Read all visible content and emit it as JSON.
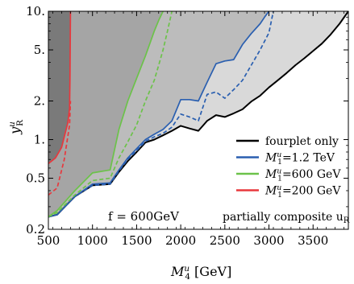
{
  "chart_data": {
    "type": "area",
    "xlabel_base": "M",
    "xlabel_sub": "4",
    "xlabel_sup": "u",
    "xlabel_unit": "[GeV]",
    "ylabel_base": "y",
    "ylabel_sub": "R",
    "ylabel_sup": "u",
    "x_axis": {
      "range": [
        500,
        3900
      ],
      "ticks": [
        "500",
        "1000",
        "1500",
        "2000",
        "2500",
        "3000",
        "3500"
      ],
      "tick_values": [
        500,
        1000,
        1500,
        2000,
        2500,
        3000,
        3500
      ]
    },
    "y_axis": {
      "scale": "log",
      "range": [
        0.2,
        10
      ],
      "ticks": [
        "0.2",
        "0.5",
        "1.",
        "2.",
        "5.",
        "10."
      ],
      "tick_values": [
        0.2,
        0.5,
        1,
        2,
        5,
        10
      ]
    },
    "annotations": {
      "f_value": "f = 600GeV",
      "scenario": "partially composite u",
      "scenario_sub": "R"
    },
    "legend": {
      "placement": "right",
      "entries": [
        {
          "label": "fourplet only",
          "color": "#000000"
        },
        {
          "label_base": "M",
          "label_sub": "1",
          "label_sup": "u",
          "label_value": "=1.2 TeV",
          "color": "#2a5fb0"
        },
        {
          "label_base": "M",
          "label_sub": "1",
          "label_sup": "u",
          "label_value": "=600 GeV",
          "color": "#6cc24a"
        },
        {
          "label_base": "M",
          "label_sub": "1",
          "label_sup": "u",
          "label_value": "=200 GeV",
          "color": "#e8383d"
        }
      ]
    },
    "series": [
      {
        "name": "fourplet only",
        "color": "#000000",
        "fill": "#d9d9d9",
        "style": "solid",
        "x": [
          500,
          600,
          800,
          1000,
          1200,
          1300,
          1400,
          1500,
          1600,
          1700,
          1800,
          1900,
          2000,
          2100,
          2200,
          2300,
          2400,
          2500,
          2600,
          2700,
          2800,
          2900,
          3000,
          3100,
          3200,
          3300,
          3400,
          3500,
          3600,
          3700,
          3800,
          3900
        ],
        "y": [
          0.25,
          0.26,
          0.36,
          0.44,
          0.45,
          0.56,
          0.68,
          0.8,
          0.95,
          1.0,
          1.08,
          1.17,
          1.28,
          1.22,
          1.17,
          1.4,
          1.55,
          1.5,
          1.6,
          1.72,
          1.98,
          2.2,
          2.55,
          2.9,
          3.3,
          3.8,
          4.3,
          4.9,
          5.6,
          6.6,
          8.0,
          10.0
        ]
      },
      {
        "name": "M=1.2 TeV",
        "color": "#2a5fb0",
        "fill": "#bcbcbc",
        "style": "solid",
        "x": [
          500,
          600,
          800,
          1000,
          1200,
          1300,
          1400,
          1500,
          1600,
          1700,
          1800,
          1900,
          2000,
          2100,
          2200,
          2300,
          2400,
          2500,
          2600,
          2700,
          2800,
          2900,
          2950,
          3000
        ],
        "y": [
          0.25,
          0.26,
          0.36,
          0.45,
          0.46,
          0.58,
          0.72,
          0.85,
          1.0,
          1.1,
          1.2,
          1.4,
          2.05,
          2.05,
          2.0,
          2.8,
          3.9,
          4.1,
          4.2,
          5.5,
          6.7,
          8.0,
          9.0,
          10.0
        ]
      },
      {
        "name": "M=1.2 TeV (dashed)",
        "color": "#2a5fb0",
        "style": "dashed",
        "x": [
          500,
          600,
          800,
          1000,
          1200,
          1300,
          1400,
          1500,
          1600,
          1700,
          1800,
          1900,
          2000,
          2100,
          2200,
          2300,
          2400,
          2500,
          2600,
          2700,
          2800,
          2900,
          3000,
          3050
        ],
        "y": [
          0.25,
          0.26,
          0.36,
          0.44,
          0.45,
          0.57,
          0.7,
          0.82,
          0.97,
          1.05,
          1.12,
          1.25,
          1.58,
          1.5,
          1.4,
          2.25,
          2.35,
          2.1,
          2.45,
          2.9,
          3.8,
          5.0,
          6.8,
          10.0
        ]
      },
      {
        "name": "M=600 GeV",
        "color": "#6cc24a",
        "fill": "#a5a5a5",
        "style": "solid",
        "x": [
          500,
          600,
          800,
          1000,
          1200,
          1300,
          1400,
          1500,
          1600,
          1650,
          1700,
          1750,
          1800
        ],
        "y": [
          0.25,
          0.28,
          0.4,
          0.55,
          0.58,
          1.2,
          2.0,
          3.0,
          4.5,
          5.6,
          7.0,
          8.5,
          10.0
        ]
      },
      {
        "name": "M=600 GeV (dashed)",
        "color": "#6cc24a",
        "style": "dashed",
        "x": [
          500,
          600,
          800,
          1000,
          1200,
          1300,
          1400,
          1500,
          1600,
          1700,
          1750,
          1800,
          1850,
          1900
        ],
        "y": [
          0.25,
          0.27,
          0.37,
          0.48,
          0.5,
          0.72,
          0.96,
          1.3,
          2.0,
          2.9,
          3.8,
          5.0,
          7.0,
          10.0
        ]
      },
      {
        "name": "M=200 GeV",
        "color": "#e8383d",
        "fill": "#7a7a7a",
        "style": "solid",
        "x": [
          500,
          580,
          650,
          720,
          740,
          745,
          750
        ],
        "y": [
          0.65,
          0.72,
          0.87,
          1.35,
          1.75,
          3.0,
          10.0
        ]
      },
      {
        "name": "M=200 GeV (dashed)",
        "color": "#e8383d",
        "style": "dashed",
        "x": [
          500,
          600,
          680,
          740,
          750
        ],
        "y": [
          0.37,
          0.42,
          0.7,
          1.3,
          2.0
        ]
      }
    ]
  }
}
